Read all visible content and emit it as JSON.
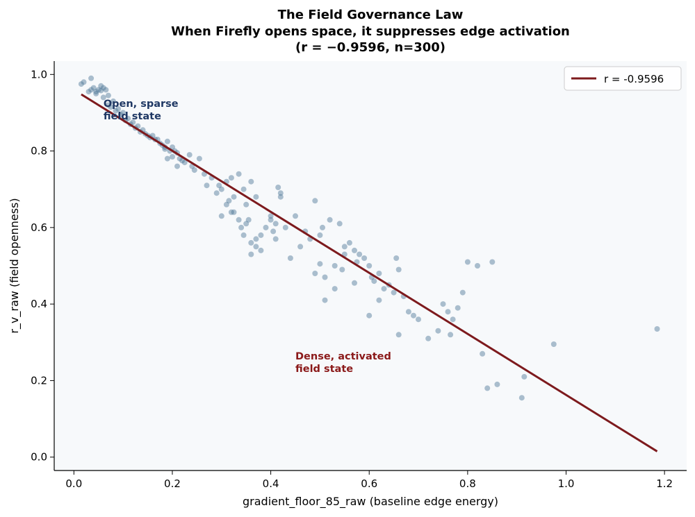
{
  "chart_data": {
    "type": "scatter",
    "title_lines": [
      "The Field Governance Law",
      "When Firefly opens space, it suppresses edge activation",
      "(r = −0.9596, n=300)"
    ],
    "xlabel": "gradient_floor_85_raw  (baseline edge energy)",
    "ylabel": "r_v_raw  (field openness)",
    "xlim": [
      -0.04,
      1.245
    ],
    "ylim": [
      -0.035,
      1.035
    ],
    "x_ticks": [
      0.0,
      0.2,
      0.4,
      0.6,
      0.8,
      1.0,
      1.2
    ],
    "x_tick_labels": [
      "0.0",
      "0.2",
      "0.4",
      "0.6",
      "0.8",
      "1.0",
      "1.2"
    ],
    "y_ticks": [
      0.0,
      0.2,
      0.4,
      0.6,
      0.8,
      1.0
    ],
    "y_tick_labels": [
      "0.0",
      "0.2",
      "0.4",
      "0.6",
      "0.8",
      "1.0"
    ],
    "grid": false,
    "background_color": "#f7f9fb",
    "point_color": "#4a7394",
    "line_color": "#7d1a1d",
    "legend": {
      "placement": "top-right",
      "entries": [
        {
          "label": "r = -0.9596",
          "color": "#7d1a1d"
        }
      ]
    },
    "fit_line": {
      "name": "r = -0.9596",
      "x": [
        0.015,
        1.185
      ],
      "y": [
        0.948,
        0.015
      ]
    },
    "annotations": [
      {
        "lines": [
          "Open, sparse",
          "field state"
        ],
        "x": 0.06,
        "y": 0.915,
        "color": "#1f3864"
      },
      {
        "lines": [
          "Dense, activated",
          "field state"
        ],
        "x": 0.45,
        "y": 0.255,
        "color": "#8b1a1a"
      }
    ],
    "series": [
      {
        "x": [
          0.015,
          0.02,
          0.03,
          0.035,
          0.04,
          0.045,
          0.05,
          0.055,
          0.06,
          0.065,
          0.035,
          0.045,
          0.055,
          0.06,
          0.07,
          0.07,
          0.075,
          0.08,
          0.085,
          0.09,
          0.095,
          0.1,
          0.105,
          0.11,
          0.115,
          0.12,
          0.125,
          0.13,
          0.135,
          0.14,
          0.145,
          0.15,
          0.155,
          0.16,
          0.165,
          0.17,
          0.175,
          0.18,
          0.185,
          0.19,
          0.195,
          0.2,
          0.205,
          0.21,
          0.215,
          0.22,
          0.185,
          0.19,
          0.2,
          0.21,
          0.225,
          0.235,
          0.24,
          0.245,
          0.255,
          0.265,
          0.27,
          0.28,
          0.29,
          0.3,
          0.31,
          0.315,
          0.32,
          0.325,
          0.335,
          0.345,
          0.35,
          0.36,
          0.37,
          0.335,
          0.34,
          0.345,
          0.35,
          0.355,
          0.36,
          0.37,
          0.38,
          0.39,
          0.4,
          0.405,
          0.41,
          0.42,
          0.36,
          0.37,
          0.38,
          0.4,
          0.41,
          0.415,
          0.42,
          0.43,
          0.44,
          0.45,
          0.46,
          0.47,
          0.48,
          0.49,
          0.5,
          0.505,
          0.51,
          0.52,
          0.53,
          0.54,
          0.545,
          0.55,
          0.56,
          0.57,
          0.575,
          0.58,
          0.59,
          0.6,
          0.605,
          0.61,
          0.62,
          0.63,
          0.64,
          0.65,
          0.655,
          0.66,
          0.67,
          0.68,
          0.69,
          0.7,
          0.72,
          0.74,
          0.75,
          0.76,
          0.77,
          0.78,
          0.79,
          0.8,
          0.82,
          0.83,
          0.84,
          0.85,
          0.86,
          0.91,
          0.915,
          0.975,
          1.185,
          0.49,
          0.5,
          0.51,
          0.53,
          0.55,
          0.57,
          0.6,
          0.62,
          0.66,
          0.765,
          0.325,
          0.295,
          0.3,
          0.31,
          0.32
        ],
        "y": [
          0.975,
          0.98,
          0.955,
          0.99,
          0.965,
          0.95,
          0.96,
          0.97,
          0.965,
          0.96,
          0.96,
          0.955,
          0.958,
          0.94,
          0.945,
          0.92,
          0.915,
          0.93,
          0.905,
          0.91,
          0.895,
          0.9,
          0.88,
          0.885,
          0.87,
          0.875,
          0.86,
          0.865,
          0.85,
          0.855,
          0.845,
          0.84,
          0.835,
          0.84,
          0.83,
          0.83,
          0.82,
          0.815,
          0.81,
          0.825,
          0.8,
          0.81,
          0.8,
          0.795,
          0.78,
          0.775,
          0.805,
          0.78,
          0.785,
          0.76,
          0.77,
          0.79,
          0.76,
          0.75,
          0.78,
          0.74,
          0.71,
          0.73,
          0.69,
          0.7,
          0.72,
          0.67,
          0.64,
          0.68,
          0.74,
          0.7,
          0.66,
          0.72,
          0.68,
          0.62,
          0.6,
          0.58,
          0.61,
          0.62,
          0.56,
          0.57,
          0.58,
          0.6,
          0.63,
          0.59,
          0.61,
          0.68,
          0.53,
          0.55,
          0.54,
          0.62,
          0.57,
          0.705,
          0.69,
          0.6,
          0.52,
          0.63,
          0.55,
          0.59,
          0.57,
          0.48,
          0.58,
          0.6,
          0.47,
          0.62,
          0.5,
          0.61,
          0.49,
          0.55,
          0.56,
          0.54,
          0.51,
          0.53,
          0.52,
          0.5,
          0.47,
          0.46,
          0.48,
          0.44,
          0.45,
          0.43,
          0.52,
          0.49,
          0.42,
          0.38,
          0.37,
          0.36,
          0.31,
          0.33,
          0.4,
          0.38,
          0.36,
          0.39,
          0.43,
          0.51,
          0.5,
          0.27,
          0.18,
          0.51,
          0.19,
          0.155,
          0.21,
          0.295,
          0.335,
          0.67,
          0.505,
          0.41,
          0.44,
          0.53,
          0.455,
          0.37,
          0.41,
          0.32,
          0.32,
          0.64,
          0.71,
          0.63,
          0.66,
          0.73
        ]
      }
    ]
  }
}
